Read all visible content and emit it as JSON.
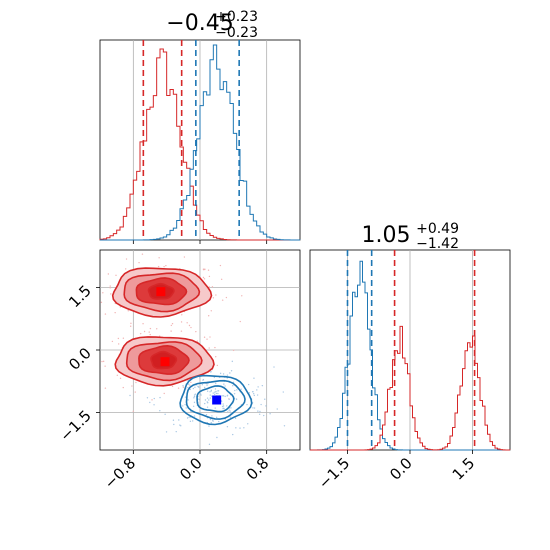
{
  "figure": {
    "title_a": {
      "main": "−0.45",
      "sup": "+0.23",
      "sub": "−0.23"
    },
    "title_b": {
      "main": "1.05",
      "sup": "+0.49",
      "sub": "−1.42"
    }
  },
  "colors": {
    "red": "#d62728",
    "blue": "#1f77b4",
    "red_fill_outer": "#ee9a9b",
    "red_fill_inner": "#dd3a3b",
    "marker_red": "#ff0000",
    "marker_blue": "#0000ff",
    "grid": "#b0b0b0"
  },
  "chart_data": [
    {
      "panel": "marginal-1",
      "type": "histogram",
      "x_range": [
        -1.2,
        1.2
      ],
      "series": [
        {
          "color": "red",
          "center": -0.45,
          "sigma": 0.22,
          "quantile_lines": [
            -0.68,
            -0.22
          ]
        },
        {
          "color": "blue",
          "center": 0.2,
          "sigma": 0.22,
          "quantile_lines": [
            -0.05,
            0.47
          ]
        }
      ]
    },
    {
      "panel": "joint",
      "type": "contour",
      "x_range": [
        -1.2,
        1.2
      ],
      "y_range": [
        -2.4,
        2.4
      ],
      "xticks": [
        -0.8,
        0.0,
        0.8
      ],
      "xtick_labels": [
        "−0.8",
        "0.0",
        "0.8"
      ],
      "yticks": [
        1.5,
        0.0,
        -1.5
      ],
      "ytick_labels": [
        "1.5",
        "0.0",
        "−1.5"
      ],
      "grid": true,
      "clusters": [
        {
          "color": "red",
          "filled": true,
          "marker": [
            -0.47,
            1.4
          ],
          "contours": [
            [
              0.58,
              0.58
            ],
            [
              0.45,
              0.45
            ],
            [
              0.3,
              0.31
            ],
            [
              0.15,
              0.18
            ]
          ],
          "center": [
            -0.47,
            1.4
          ]
        },
        {
          "color": "red",
          "filled": true,
          "marker": [
            -0.42,
            -0.28
          ],
          "contours": [
            [
              0.58,
              0.58
            ],
            [
              0.45,
              0.45
            ],
            [
              0.3,
              0.33
            ],
            [
              0.15,
              0.2
            ]
          ],
          "center": [
            -0.44,
            -0.25
          ]
        },
        {
          "color": "blue",
          "filled": false,
          "marker": [
            0.2,
            -1.2
          ],
          "contours": [
            [
              0.42,
              0.58
            ],
            [
              0.35,
              0.45
            ],
            [
              0.22,
              0.3
            ]
          ],
          "center": [
            0.18,
            -1.18
          ]
        }
      ]
    },
    {
      "panel": "marginal-2",
      "type": "histogram",
      "x_range": [
        -2.4,
        2.4
      ],
      "xticks": [
        -1.5,
        0.0,
        1.5
      ],
      "xtick_labels": [
        "−1.5",
        "0.0",
        "1.5"
      ],
      "series": [
        {
          "color": "blue",
          "center": -1.2,
          "sigma": 0.25,
          "quantile_lines": [
            -1.5,
            -0.92
          ]
        },
        {
          "color": "red",
          "modes": [
            {
              "center": -0.25,
              "sigma": 0.22
            },
            {
              "center": 1.45,
              "sigma": 0.22
            }
          ],
          "quantile_lines": [
            -0.37,
            1.55
          ]
        }
      ]
    }
  ]
}
